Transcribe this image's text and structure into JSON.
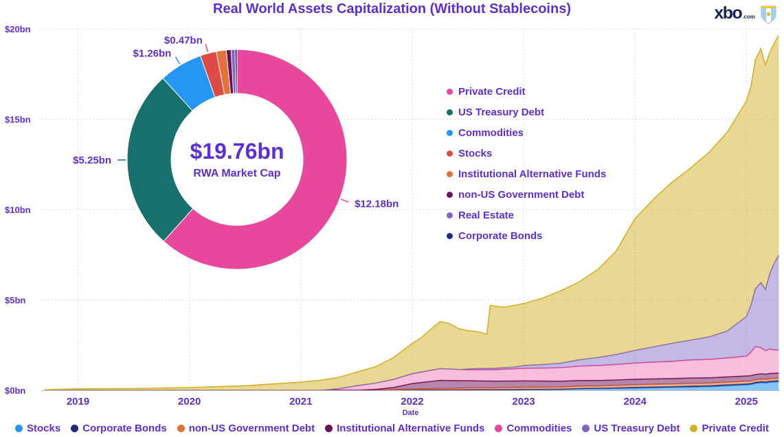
{
  "title": "Real World Assets Capitalization (Without Stablecoins)",
  "logo": {
    "brand": "xbo",
    "tld": ".com"
  },
  "colors": {
    "accent": "#5c2ed6",
    "grid": "#d9d9e3",
    "brand_navy": "#1b2356"
  },
  "donut": {
    "center_value": "$19.76bn",
    "center_label": "RWA Market Cap",
    "slices": [
      {
        "label": "Private Credit",
        "value": 12.18,
        "color": "#e8489b",
        "callout": "$12.18bn"
      },
      {
        "label": "US Treasury Debt",
        "value": 5.25,
        "color": "#17706c",
        "callout": "$5.25bn"
      },
      {
        "label": "Commodities",
        "value": 1.26,
        "color": "#2596f3",
        "callout": "$1.26bn"
      },
      {
        "label": "Stocks",
        "value": 0.47,
        "color": "#de4b45",
        "callout": "$0.47bn"
      },
      {
        "label": "Institutional Alternative Funds",
        "value": 0.29,
        "color": "#e2713a"
      },
      {
        "label": "non-US Government Debt",
        "value": 0.14,
        "color": "#6b1257"
      },
      {
        "label": "Real Estate",
        "value": 0.11,
        "color": "#7d64c4"
      },
      {
        "label": "Corporate Bonds",
        "value": 0.06,
        "color": "#232a7c"
      }
    ]
  },
  "axes": {
    "x_label": "Date",
    "y_tick_labels": [
      "$0bn",
      "$5bn",
      "$10bn",
      "$15bn",
      "$20bn"
    ],
    "x_tick_labels": [
      "2019",
      "2020",
      "2021",
      "2022",
      "2023",
      "2024",
      "2025"
    ]
  },
  "chart_data": {
    "type": "area",
    "stacked": true,
    "title": "Real World Assets Capitalization (Without Stablecoins)",
    "xlabel": "Date",
    "ylabel": "",
    "xlim": [
      2018.67,
      2025.3
    ],
    "ylim": [
      0,
      20
    ],
    "y_tick_values": [
      0,
      5,
      10,
      15,
      20
    ],
    "x_tick_years": [
      2019,
      2020,
      2021,
      2022,
      2023,
      2024,
      2025
    ],
    "legend_position": "bottom",
    "grid": true,
    "x": [
      2018.7,
      2019.0,
      2019.5,
      2020.0,
      2020.5,
      2021.0,
      2021.17,
      2021.33,
      2021.5,
      2021.67,
      2021.83,
      2022.0,
      2022.08,
      2022.17,
      2022.25,
      2022.33,
      2022.42,
      2022.5,
      2022.58,
      2022.67,
      2022.7,
      2022.75,
      2022.83,
      2022.92,
      2023.0,
      2023.17,
      2023.33,
      2023.5,
      2023.67,
      2023.83,
      2024.0,
      2024.17,
      2024.33,
      2024.5,
      2024.67,
      2024.83,
      2025.0,
      2025.04,
      2025.08,
      2025.13,
      2025.17,
      2025.21,
      2025.25,
      2025.29
    ],
    "series": [
      {
        "name": "Stocks",
        "color": "#2596f3",
        "fill_opacity": 0.55,
        "values": [
          0,
          0,
          0,
          0,
          0,
          0,
          0,
          0,
          0,
          0,
          0,
          0.02,
          0.02,
          0.02,
          0.02,
          0.02,
          0.02,
          0.03,
          0.03,
          0.03,
          0.03,
          0.03,
          0.04,
          0.04,
          0.05,
          0.05,
          0.06,
          0.08,
          0.09,
          0.1,
          0.12,
          0.14,
          0.16,
          0.18,
          0.2,
          0.25,
          0.3,
          0.32,
          0.38,
          0.42,
          0.4,
          0.44,
          0.45,
          0.47
        ]
      },
      {
        "name": "Corporate Bonds",
        "color": "#232a7c",
        "fill_opacity": 0.6,
        "values": [
          0,
          0,
          0,
          0,
          0,
          0,
          0,
          0,
          0,
          0,
          0,
          0,
          0,
          0,
          0,
          0,
          0,
          0,
          0,
          0,
          0,
          0,
          0,
          0,
          0,
          0,
          0,
          0.02,
          0.02,
          0.03,
          0.04,
          0.04,
          0.04,
          0.05,
          0.05,
          0.05,
          0.05,
          0.05,
          0.06,
          0.06,
          0.06,
          0.06,
          0.06,
          0.06
        ]
      },
      {
        "name": "non-US Government Debt",
        "color": "#e2713a",
        "fill_opacity": 0.55,
        "values": [
          0,
          0,
          0,
          0,
          0,
          0,
          0,
          0,
          0,
          0,
          0.03,
          0.05,
          0.06,
          0.07,
          0.08,
          0.08,
          0.09,
          0.1,
          0.1,
          0.1,
          0.1,
          0.1,
          0.11,
          0.11,
          0.12,
          0.12,
          0.12,
          0.13,
          0.13,
          0.14,
          0.15,
          0.15,
          0.15,
          0.15,
          0.15,
          0.15,
          0.15,
          0.15,
          0.14,
          0.14,
          0.14,
          0.14,
          0.14,
          0.14
        ]
      },
      {
        "name": "Institutional Alternative Funds",
        "color": "#6b1257",
        "fill_opacity": 0.5,
        "values": [
          0,
          0,
          0,
          0,
          0,
          0,
          0,
          0,
          0,
          0.05,
          0.12,
          0.3,
          0.35,
          0.4,
          0.45,
          0.44,
          0.42,
          0.4,
          0.39,
          0.38,
          0.38,
          0.37,
          0.36,
          0.36,
          0.35,
          0.34,
          0.32,
          0.31,
          0.3,
          0.3,
          0.3,
          0.3,
          0.3,
          0.3,
          0.29,
          0.29,
          0.29,
          0.29,
          0.29,
          0.29,
          0.29,
          0.29,
          0.29,
          0.29
        ]
      },
      {
        "name": "Commodities",
        "color": "#e8489b",
        "fill_opacity": 0.35,
        "values": [
          0,
          0,
          0,
          0,
          0,
          0,
          0,
          0.08,
          0.25,
          0.35,
          0.45,
          0.55,
          0.58,
          0.62,
          0.65,
          0.64,
          0.62,
          0.6,
          0.62,
          0.63,
          0.63,
          0.64,
          0.66,
          0.68,
          0.7,
          0.72,
          0.75,
          0.8,
          0.83,
          0.86,
          0.9,
          0.93,
          0.95,
          1.0,
          1.02,
          1.05,
          1.1,
          1.3,
          1.55,
          1.45,
          1.3,
          1.35,
          1.3,
          1.26
        ]
      },
      {
        "name": "US Treasury Debt",
        "color": "#7d64c4",
        "fill_opacity": 0.45,
        "values": [
          0,
          0,
          0,
          0,
          0,
          0,
          0,
          0,
          0,
          0,
          0,
          0,
          0,
          0,
          0,
          0,
          0,
          0.05,
          0.06,
          0.07,
          0.07,
          0.08,
          0.09,
          0.1,
          0.15,
          0.2,
          0.25,
          0.35,
          0.45,
          0.55,
          0.7,
          0.85,
          1.0,
          1.1,
          1.25,
          1.5,
          2.2,
          2.6,
          3.2,
          3.6,
          3.4,
          4.2,
          4.8,
          5.25
        ]
      },
      {
        "name": "Private Credit",
        "color": "#d4b128",
        "fill_opacity": 0.5,
        "values": [
          0.03,
          0.08,
          0.1,
          0.15,
          0.25,
          0.45,
          0.55,
          0.62,
          0.75,
          0.9,
          1.2,
          1.68,
          1.89,
          2.29,
          2.6,
          2.52,
          2.25,
          2.12,
          2.05,
          1.89,
          3.49,
          3.43,
          3.34,
          3.41,
          3.43,
          3.67,
          4.0,
          4.31,
          4.88,
          5.72,
          7.29,
          8.19,
          8.9,
          9.52,
          10.24,
          11.01,
          11.91,
          12.09,
          12.68,
          12.94,
          12.41,
          12.22,
          12.16,
          12.18
        ]
      }
    ]
  }
}
